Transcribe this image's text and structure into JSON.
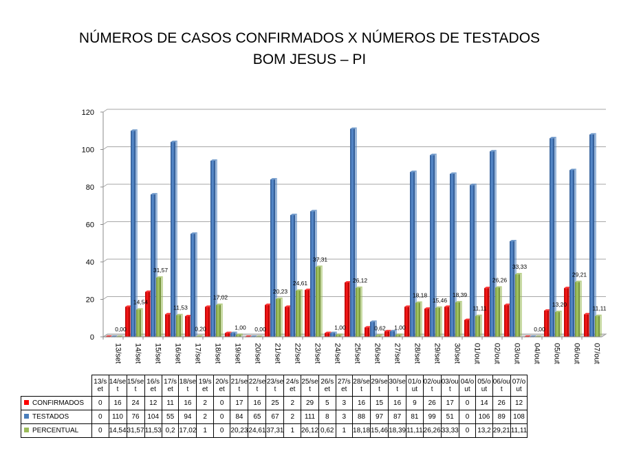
{
  "title_line1": "NÚMEROS DE CASOS CONFIRMADOS X NÚMEROS DE TESTADOS",
  "title_line2": "BOM JESUS – PI",
  "chart_data": {
    "type": "bar",
    "title": "NÚMEROS DE CASOS CONFIRMADOS X NÚMEROS DE TESTADOS BOM JESUS – PI",
    "ylim": [
      0,
      120
    ],
    "yticks": [
      "0",
      "20",
      "40",
      "60",
      "80",
      "100",
      "120"
    ],
    "grid": true,
    "legend": "bottom-left (data table)",
    "categories": [
      "13/set",
      "14/set",
      "15/set",
      "16/set",
      "17/set",
      "18/set",
      "19/set",
      "20/set",
      "21/set",
      "22/set",
      "23/set",
      "24/set",
      "25/set",
      "26/set",
      "27/set",
      "28/set",
      "29/set",
      "30/set",
      "01/out",
      "02/out",
      "03/out",
      "04/out",
      "05/out",
      "06/out",
      "07/out"
    ],
    "table_headers": [
      "13/set",
      "14/set",
      "15/set",
      "16/set",
      "17/set",
      "18/set",
      "19/set",
      "20/set",
      "21/set",
      "22/set",
      "23/set",
      "24/set",
      "25/set",
      "26/set",
      "27/set",
      "28/set",
      "29/set",
      "30/set",
      "01/out",
      "02/out",
      "03/out",
      "04/out",
      "05/out",
      "06/out",
      "07/out"
    ],
    "series": [
      {
        "name": "CONFIRMADOS",
        "color": "#ff0000",
        "values": [
          0,
          16,
          24,
          12,
          11,
          16,
          2,
          0,
          17,
          16,
          25,
          2,
          29,
          5,
          3,
          16,
          15,
          16,
          9,
          26,
          17,
          0,
          14,
          26,
          12
        ]
      },
      {
        "name": "TESTADOS",
        "color": "#4a7ebb",
        "values": [
          0,
          110,
          76,
          104,
          55,
          94,
          2,
          0,
          84,
          65,
          67,
          2,
          111,
          8,
          3,
          88,
          97,
          87,
          81,
          99,
          51,
          0,
          106,
          89,
          108
        ]
      },
      {
        "name": "PERCENTUAL",
        "color": "#9bbb59",
        "values": [
          0,
          14.54,
          31.57,
          11.53,
          0.2,
          17.02,
          1,
          0,
          20.23,
          24.61,
          37.31,
          1,
          26.12,
          0.62,
          1,
          18.18,
          15.46,
          18.39,
          11.11,
          26.26,
          33.33,
          0,
          13.2,
          29.21,
          11.11
        ]
      }
    ],
    "percent_labels": [
      "0,00",
      "14,54",
      "31,57",
      "11,53",
      "0,20",
      "17,02",
      "1,00",
      "0,00",
      "20,23",
      "24,61",
      "37,31",
      "1,00",
      "26,12",
      "0,62",
      "1,00",
      "18,18",
      "15,46",
      "18,39",
      "11,11",
      "26,26",
      "33,33",
      "0,00",
      "13,20",
      "29,21",
      "11,11"
    ],
    "table_rows": [
      [
        "0",
        "16",
        "24",
        "12",
        "11",
        "16",
        "2",
        "0",
        "17",
        "16",
        "25",
        "2",
        "29",
        "5",
        "3",
        "16",
        "15",
        "16",
        "9",
        "26",
        "17",
        "0",
        "14",
        "26",
        "12"
      ],
      [
        "0",
        "110",
        "76",
        "104",
        "55",
        "94",
        "2",
        "0",
        "84",
        "65",
        "67",
        "2",
        "111",
        "8",
        "3",
        "88",
        "97",
        "87",
        "81",
        "99",
        "51",
        "0",
        "106",
        "89",
        "108"
      ],
      [
        "0",
        "14,54",
        "31,57",
        "11,53",
        "0,2",
        "17,02",
        "1",
        "0",
        "20,23",
        "24,61",
        "37,31",
        "1",
        "26,12",
        "0,62",
        "1",
        "18,18",
        "15,46",
        "18,39",
        "11,11",
        "26,26",
        "33,33",
        "0",
        "13,2",
        "29,21",
        "11,11"
      ]
    ]
  }
}
